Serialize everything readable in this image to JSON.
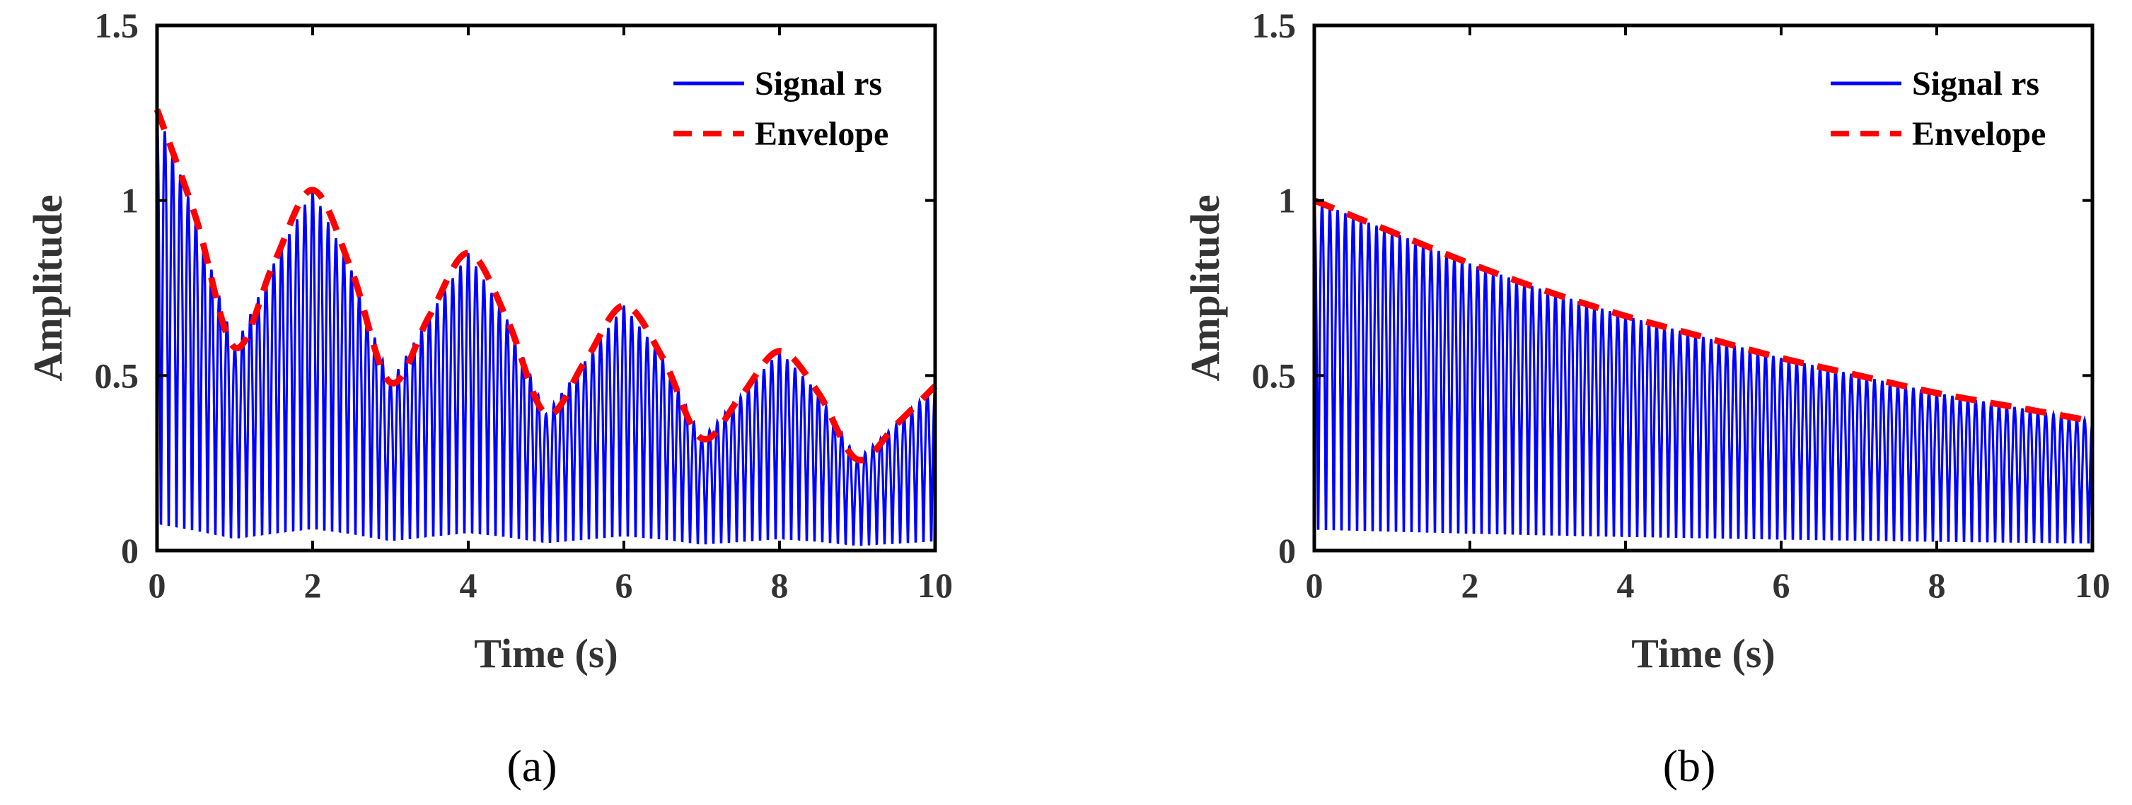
{
  "chart_data": [
    {
      "type": "line",
      "panel_label": "(a)",
      "xlabel": "Time (s)",
      "ylabel": "Amplitude",
      "xlim": [
        0,
        10
      ],
      "ylim": [
        0,
        1.5
      ],
      "xticks": [
        "0",
        "2",
        "4",
        "6",
        "8",
        "10"
      ],
      "xtick_values": [
        0,
        2,
        4,
        6,
        8,
        10
      ],
      "yticks": [
        "0",
        "0.5",
        "1",
        "1.5"
      ],
      "ytick_values": [
        0,
        0.5,
        1,
        1.5
      ],
      "legend_position": "top-right",
      "series": [
        {
          "name": "Signal rs",
          "color": "#0000ff",
          "style": "solid",
          "carrier_frequency_hz": 10,
          "envelope_ref": "Envelope"
        },
        {
          "name": "Envelope",
          "color": "#ff0000",
          "style": "dashed",
          "x": [
            0,
            0.5,
            1,
            1.5,
            2,
            2.5,
            3,
            3.5,
            4,
            4.5,
            5,
            5.5,
            6,
            6.5,
            7,
            7.5,
            8,
            8.5,
            9,
            9.5,
            10
          ],
          "y": [
            1.26,
            0.95,
            0.58,
            0.82,
            1.03,
            0.8,
            0.48,
            0.67,
            0.85,
            0.66,
            0.39,
            0.54,
            0.7,
            0.55,
            0.32,
            0.44,
            0.57,
            0.45,
            0.26,
            0.36,
            0.47
          ]
        }
      ]
    },
    {
      "type": "line",
      "panel_label": "(b)",
      "xlabel": "Time (s)",
      "ylabel": "Amplitude",
      "xlim": [
        0,
        10
      ],
      "ylim": [
        0,
        1.5
      ],
      "xticks": [
        "0",
        "2",
        "4",
        "6",
        "8",
        "10"
      ],
      "xtick_values": [
        0,
        2,
        4,
        6,
        8,
        10
      ],
      "yticks": [
        "0",
        "0.5",
        "1",
        "1.5"
      ],
      "ytick_values": [
        0,
        0.5,
        1,
        1.5
      ],
      "legend_position": "top-right",
      "series": [
        {
          "name": "Signal rs",
          "color": "#0000ff",
          "style": "solid",
          "carrier_frequency_hz": 10,
          "envelope_ref": "Envelope"
        },
        {
          "name": "Envelope",
          "color": "#ff0000",
          "style": "dashed",
          "x": [
            0,
            1,
            2,
            3,
            4,
            5,
            6,
            7,
            8,
            9,
            10
          ],
          "y": [
            1.0,
            0.91,
            0.82,
            0.74,
            0.67,
            0.61,
            0.55,
            0.5,
            0.45,
            0.41,
            0.37
          ]
        }
      ]
    }
  ]
}
